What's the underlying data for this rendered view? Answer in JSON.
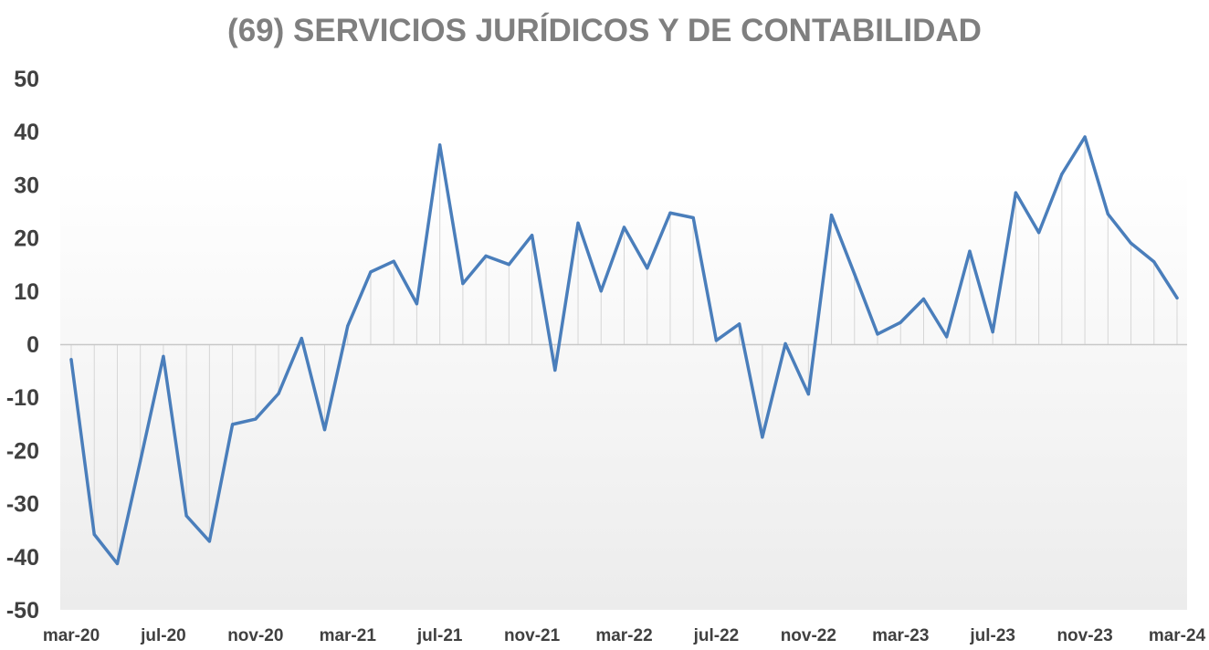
{
  "chart_data": {
    "type": "line",
    "title": "(69) SERVICIOS JURÍDICOS Y DE CONTABILIDAD",
    "xlabel": "",
    "ylabel": "",
    "ylim": [
      -50,
      50
    ],
    "yticks": [
      50,
      40,
      30,
      20,
      10,
      0,
      -10,
      -20,
      -30,
      -40,
      -50
    ],
    "grid": false,
    "x_tick_labels": [
      "mar-20",
      "jul-20",
      "nov-20",
      "mar-21",
      "jul-21",
      "nov-21",
      "mar-22",
      "jul-22",
      "nov-22",
      "mar-23",
      "jul-23",
      "nov-23",
      "mar-24"
    ],
    "x_tick_every": 4,
    "categories": [
      "mar-20",
      "abr-20",
      "may-20",
      "jun-20",
      "jul-20",
      "ago-20",
      "sep-20",
      "oct-20",
      "nov-20",
      "dic-20",
      "ene-21",
      "feb-21",
      "mar-21",
      "abr-21",
      "may-21",
      "jun-21",
      "jul-21",
      "ago-21",
      "sep-21",
      "oct-21",
      "nov-21",
      "dic-21",
      "ene-22",
      "feb-22",
      "mar-22",
      "abr-22",
      "may-22",
      "jun-22",
      "jul-22",
      "ago-22",
      "sep-22",
      "oct-22",
      "nov-22",
      "dic-22",
      "ene-23",
      "feb-23",
      "mar-23",
      "abr-23",
      "may-23",
      "jun-23",
      "jul-23",
      "ago-23",
      "sep-23",
      "oct-23",
      "nov-23",
      "dic-23",
      "ene-24",
      "feb-24",
      "mar-24"
    ],
    "series": [
      {
        "name": "Servicios jurídicos y de contabilidad",
        "color": "#4a7ebb",
        "values": [
          -2.9,
          -35.8,
          -41.3,
          -22.0,
          -2.3,
          -32.3,
          -37.1,
          -15.1,
          -14.1,
          -9.3,
          1.1,
          -16.1,
          3.4,
          13.6,
          15.6,
          7.6,
          37.5,
          11.4,
          16.6,
          15.0,
          20.5,
          -4.9,
          22.8,
          10.0,
          22.0,
          14.3,
          24.7,
          23.8,
          0.7,
          3.8,
          -17.5,
          0.1,
          -9.4,
          24.3,
          13.2,
          1.9,
          4.1,
          8.5,
          1.4,
          17.5,
          2.3,
          28.5,
          21.0,
          32.0,
          39.0,
          24.5,
          19.0,
          15.5,
          8.7
        ]
      }
    ]
  }
}
